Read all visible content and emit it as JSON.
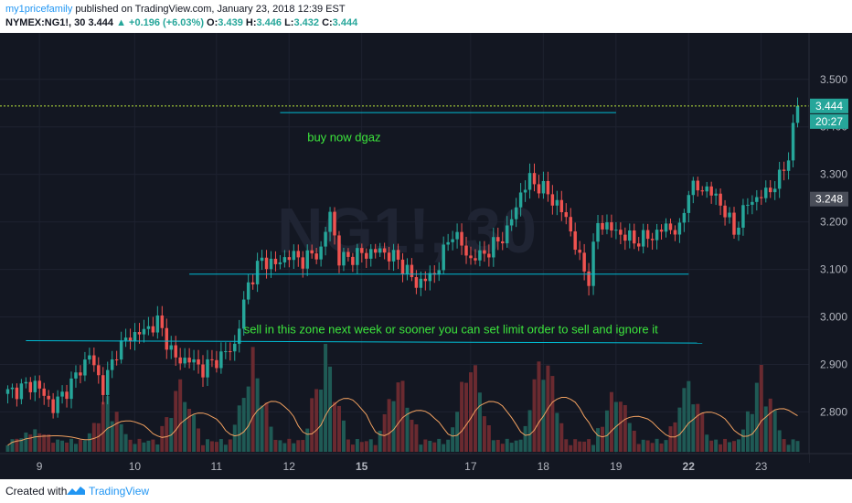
{
  "header": {
    "author": "my1pricefamily",
    "published": "published on TradingView.com, January 23, 2018 12:39 EST",
    "symbol": "NYMEX:NG1!, 30",
    "last": "3.444",
    "change_arrow": "▲",
    "change": "+0.196 (+6.03%)",
    "o_label": "O:",
    "o_value": "3.439",
    "h_label": "H:",
    "h_value": "3.446",
    "l_label": "L:",
    "l_value": "3.432",
    "c_label": "C:",
    "c_value": "3.444"
  },
  "footer": {
    "created_with": "Created with",
    "logo_icon": "tradingview-logo-icon",
    "brand": "TradingView"
  },
  "colors": {
    "background": "#131722",
    "up": "#26a69a",
    "down": "#ef5350",
    "trendline": "#00bcd4",
    "annotation": "#3ce43c",
    "price_line": "#b6e33b",
    "ma": "#f0a060"
  },
  "chart_data": {
    "type": "candlestick",
    "ylim": [
      2.72,
      3.59
    ],
    "y_ticks": [
      "3.500",
      "3.400",
      "3.300",
      "3.200",
      "3.100",
      "3.000",
      "2.900",
      "2.800"
    ],
    "y_tick_values": [
      3.5,
      3.4,
      3.3,
      3.2,
      3.1,
      3.0,
      2.9,
      2.8
    ],
    "x_ticks": [
      "9",
      "10",
      "11",
      "12",
      "15",
      "17",
      "18",
      "19",
      "22",
      "23"
    ],
    "x_tick_bold": [
      "15",
      "22"
    ],
    "price_path": [
      [
        0,
        2.84
      ],
      [
        6,
        2.86
      ],
      [
        10,
        2.81
      ],
      [
        14,
        2.86
      ],
      [
        18,
        2.92
      ],
      [
        21,
        2.85
      ],
      [
        24,
        2.93
      ],
      [
        27,
        2.96
      ],
      [
        30,
        2.97
      ],
      [
        33,
        2.99
      ],
      [
        37,
        2.91
      ],
      [
        40,
        2.91
      ],
      [
        43,
        2.89
      ],
      [
        46,
        2.91
      ],
      [
        50,
        2.94
      ],
      [
        53,
        3.07
      ],
      [
        56,
        3.12
      ],
      [
        59,
        3.11
      ],
      [
        62,
        3.13
      ],
      [
        65,
        3.12
      ],
      [
        69,
        3.14
      ],
      [
        71,
        3.22
      ],
      [
        73,
        3.12
      ],
      [
        77,
        3.13
      ],
      [
        82,
        3.14
      ],
      [
        86,
        3.12
      ],
      [
        90,
        3.07
      ],
      [
        94,
        3.09
      ],
      [
        98,
        3.18
      ],
      [
        102,
        3.12
      ],
      [
        106,
        3.14
      ],
      [
        110,
        3.18
      ],
      [
        113,
        3.26
      ],
      [
        115,
        3.29
      ],
      [
        119,
        3.26
      ],
      [
        123,
        3.21
      ],
      [
        126,
        3.12
      ],
      [
        128,
        3.08
      ],
      [
        130,
        3.2
      ],
      [
        134,
        3.18
      ],
      [
        138,
        3.16
      ],
      [
        142,
        3.17
      ],
      [
        145,
        3.19
      ],
      [
        148,
        3.18
      ],
      [
        150,
        3.27
      ],
      [
        154,
        3.27
      ],
      [
        157,
        3.24
      ],
      [
        160,
        3.18
      ],
      [
        163,
        3.24
      ],
      [
        167,
        3.26
      ],
      [
        170,
        3.29
      ],
      [
        172,
        3.34
      ],
      [
        174,
        3.45
      ]
    ],
    "volume_spikes": [
      0.12,
      0.45,
      0.62,
      0.86,
      0.95,
      0.68,
      0.88,
      1.0,
      0.55,
      0.64,
      0.72
    ],
    "last_price": 3.444,
    "last_price_label": "3.444",
    "countdown_label": "20:27",
    "prev_close": 3.248,
    "prev_close_label": "3.248",
    "trendlines": [
      {
        "from": [
          60,
          3.43
        ],
        "to": [
          134,
          3.43
        ]
      },
      {
        "from": [
          40,
          3.09
        ],
        "to": [
          150,
          3.09
        ]
      },
      {
        "from": [
          4,
          2.95
        ],
        "to": [
          153,
          2.945
        ]
      }
    ],
    "annotations": [
      {
        "text": "buy now dgaz",
        "at": [
          66,
          3.37
        ]
      },
      {
        "text": "sell in this zone next week or sooner you can set limit order to sell and ignore it",
        "at": [
          52,
          2.965
        ]
      }
    ],
    "watermark": "NG1!, 30"
  }
}
